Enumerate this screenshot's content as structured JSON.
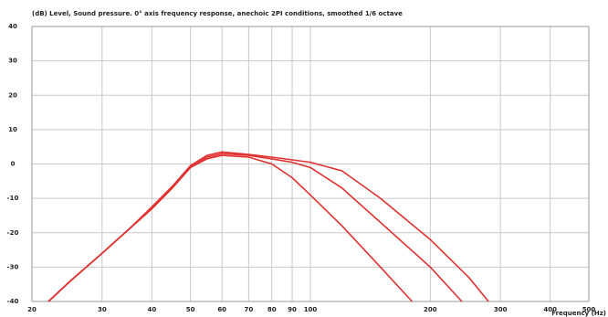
{
  "chart_data": {
    "type": "line",
    "subtitle": "(dB) Level, Sound pressure. 0° axis frequency response, anechoic 2PI conditions, smoothed 1/6 octave",
    "x_label": "Frequency (Hz)",
    "log_x": true,
    "grid": true,
    "xlim": [
      20,
      500
    ],
    "xticks": [
      20,
      30,
      40,
      50,
      60,
      70,
      80,
      90,
      100,
      200,
      300,
      400,
      500
    ],
    "ylim": [
      -40,
      40
    ],
    "yticks": [
      -40,
      -30,
      -20,
      -10,
      0,
      10,
      20,
      30,
      40
    ],
    "series": [
      {
        "color": "#e03030",
        "x": [
          22,
          25,
          30,
          35,
          40,
          45,
          50,
          55,
          60,
          70,
          80,
          90,
          100,
          120,
          150,
          180
        ],
        "values": [
          -40,
          -34,
          -26,
          -19,
          -13,
          -7,
          -1,
          1.5,
          2.5,
          2,
          0,
          -4,
          -9,
          -18,
          -30,
          -40
        ]
      },
      {
        "color": "#e03030",
        "x": [
          22,
          25,
          30,
          35,
          40,
          45,
          50,
          55,
          60,
          70,
          80,
          90,
          100,
          120,
          150,
          200,
          240
        ],
        "values": [
          -40,
          -34,
          -26,
          -19,
          -13,
          -7,
          -1,
          2,
          3,
          2.5,
          1.5,
          0.5,
          -1,
          -7,
          -17,
          -30,
          -40
        ]
      },
      {
        "color": "#e03030",
        "x": [
          22,
          25,
          30,
          35,
          40,
          45,
          50,
          55,
          60,
          70,
          80,
          90,
          100,
          120,
          150,
          200,
          250,
          280
        ],
        "values": [
          -40,
          -34,
          -26,
          -19,
          -12.5,
          -6.5,
          -0.5,
          2.5,
          3.5,
          2.8,
          2,
          1.2,
          0.5,
          -2,
          -10,
          -22,
          -33,
          -40
        ]
      }
    ]
  }
}
